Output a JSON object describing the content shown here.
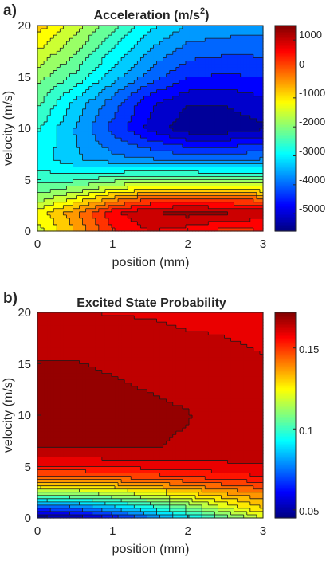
{
  "chart_data": [
    {
      "type": "heatmap",
      "panel_label": "a)",
      "title_main": "Acceleration (m/s",
      "title_sup": "2",
      "title_end": ")",
      "xlabel": "position (mm)",
      "ylabel": "velocity (m/s)",
      "xlim": [
        0,
        3
      ],
      "ylim": [
        0,
        20
      ],
      "x_ticks": [
        "0",
        "1",
        "2",
        "3"
      ],
      "y_ticks": [
        "0",
        "5",
        "10",
        "15",
        "20"
      ],
      "colorbar": {
        "range": [
          -5600,
          1500
        ],
        "ticks": [
          "1000",
          "0",
          "-1000",
          "-2000",
          "-3000",
          "-4000",
          "-5000"
        ],
        "tick_values": [
          1000,
          0,
          -1000,
          -2000,
          -3000,
          -4000,
          -5000
        ]
      },
      "x": [
        0,
        0.5,
        1,
        1.5,
        2,
        2.5,
        3
      ],
      "y": [
        0,
        1.8,
        3,
        5,
        7,
        10,
        12.5,
        15,
        20
      ],
      "z": [
        [
          -1500,
          -600,
          400,
          800,
          600,
          300,
          400
        ],
        [
          -1200,
          -400,
          700,
          1100,
          1300,
          1200,
          1000
        ],
        [
          -1800,
          -1200,
          -400,
          200,
          300,
          200,
          0
        ],
        [
          -2600,
          -2500,
          -2200,
          -2000,
          -2000,
          -2100,
          -2200
        ],
        [
          -2900,
          -3400,
          -3700,
          -3800,
          -3900,
          -3900,
          -3800
        ],
        [
          -2700,
          -3500,
          -4300,
          -5000,
          -5500,
          -5500,
          -5300
        ],
        [
          -2300,
          -3200,
          -4000,
          -4800,
          -5200,
          -5200,
          -5000
        ],
        [
          -1900,
          -2500,
          -3300,
          -4000,
          -4500,
          -4600,
          -4500
        ],
        [
          -800,
          -1500,
          -2300,
          -3000,
          -3500,
          -3600,
          -3700
        ]
      ]
    },
    {
      "type": "heatmap",
      "panel_label": "b)",
      "title_main": "Excited State Probability",
      "xlabel": "position (mm)",
      "ylabel": "velocity (m/s)",
      "xlim": [
        0,
        3
      ],
      "ylim": [
        0,
        20
      ],
      "x_ticks": [
        "0",
        "1",
        "2",
        "3"
      ],
      "y_ticks": [
        "0",
        "5",
        "10",
        "15",
        "20"
      ],
      "colorbar": {
        "range": [
          0.045,
          0.172
        ],
        "ticks": [
          "0.15",
          "0.1",
          "0.05"
        ],
        "tick_values": [
          0.15,
          0.1,
          0.05
        ]
      },
      "x": [
        0,
        0.5,
        1,
        1.5,
        2,
        2.5,
        3
      ],
      "y": [
        0,
        1,
        2,
        3,
        4,
        5,
        6,
        7,
        10,
        15,
        20
      ],
      "z": [
        [
          0.045,
          0.05,
          0.06,
          0.075,
          0.09,
          0.105,
          0.12
        ],
        [
          0.07,
          0.075,
          0.085,
          0.095,
          0.108,
          0.12,
          0.13
        ],
        [
          0.1,
          0.103,
          0.108,
          0.115,
          0.122,
          0.13,
          0.137
        ],
        [
          0.125,
          0.127,
          0.13,
          0.134,
          0.139,
          0.143,
          0.147
        ],
        [
          0.143,
          0.144,
          0.146,
          0.148,
          0.151,
          0.153,
          0.156
        ],
        [
          0.155,
          0.156,
          0.157,
          0.158,
          0.159,
          0.16,
          0.161
        ],
        [
          0.162,
          0.162,
          0.163,
          0.163,
          0.163,
          0.163,
          0.163
        ],
        [
          0.167,
          0.167,
          0.167,
          0.167,
          0.166,
          0.165,
          0.163
        ],
        [
          0.169,
          0.169,
          0.169,
          0.168,
          0.167,
          0.164,
          0.163
        ],
        [
          0.167,
          0.167,
          0.166,
          0.165,
          0.164,
          0.163,
          0.162
        ],
        [
          0.162,
          0.162,
          0.161,
          0.161,
          0.16,
          0.16,
          0.159
        ]
      ]
    }
  ]
}
